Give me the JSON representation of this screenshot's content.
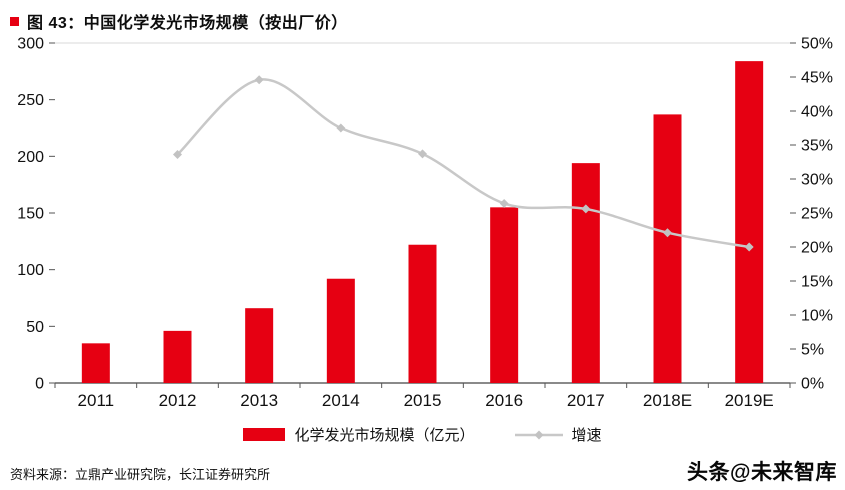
{
  "header": {
    "title": "图 43：中国化学发光市场规模（按出厂价）"
  },
  "chart_data": {
    "type": "bar",
    "categories": [
      "2011",
      "2012",
      "2013",
      "2014",
      "2015",
      "2016",
      "2017",
      "2018E",
      "2019E"
    ],
    "series": [
      {
        "name": "化学发光市场规模（亿元）",
        "type": "bar",
        "axis": "left",
        "color": "#e60012",
        "values": [
          35,
          46,
          66,
          92,
          122,
          155,
          194,
          237,
          284
        ]
      },
      {
        "name": "增速",
        "type": "line",
        "axis": "right",
        "color": "#c8c8c8",
        "marker_color": "#c2c2c2",
        "values": [
          null,
          33.6,
          44.6,
          37.5,
          33.7,
          26.4,
          25.6,
          22.1,
          20.0
        ],
        "unit": "%"
      }
    ],
    "left_axis": {
      "min": 0,
      "max": 300,
      "step": 50,
      "labels": [
        "0",
        "50",
        "100",
        "150",
        "200",
        "250",
        "300"
      ]
    },
    "right_axis": {
      "min": 0,
      "max": 50,
      "step": 5,
      "labels": [
        "0%",
        "5%",
        "10%",
        "15%",
        "20%",
        "25%",
        "30%",
        "35%",
        "40%",
        "45%",
        "50%"
      ]
    },
    "grid": "top-border-only",
    "legend_position": "bottom"
  },
  "legend": {
    "items": [
      {
        "label": "化学发光市场规模（亿元）",
        "type": "bar"
      },
      {
        "label": "增速",
        "type": "line"
      }
    ]
  },
  "footer": {
    "source": "资料来源：立鼎产业研究院，长江证券研究所",
    "watermark": "头条@未来智库"
  }
}
